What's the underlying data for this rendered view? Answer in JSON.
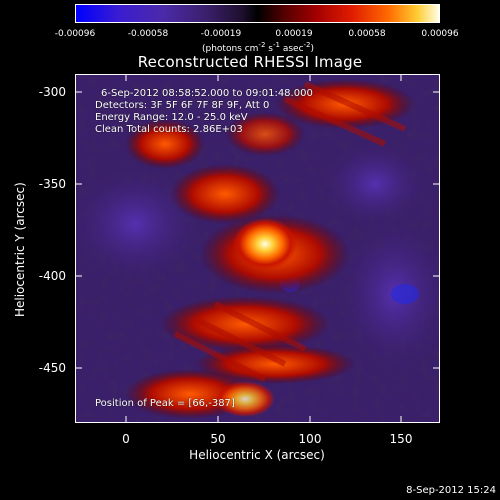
{
  "colorbar": {
    "ticks": [
      "-0.00096",
      "-0.00058",
      "-0.00019",
      "0.00019",
      "0.00058",
      "0.00096"
    ],
    "unit_main": "(photons cm",
    "unit_exp1": "-2",
    "unit_mid": " s",
    "unit_exp2": "-1",
    "unit_mid2": " asec",
    "unit_exp3": "-2",
    "unit_end": ")"
  },
  "plot": {
    "title": "Reconstructed RHESSI Image",
    "xlabel": "Heliocentric X (arcsec)",
    "ylabel": "Heliocentric Y (arcsec)",
    "xticks": [
      "0",
      "50",
      "100",
      "150"
    ],
    "yticks": [
      "-300",
      "-350",
      "-400",
      "-450"
    ]
  },
  "info": {
    "time_range": "6-Sep-2012 08:58:52.000 to 09:01:48.000",
    "detectors": "Detectors: 3F 5F 6F 7F 8F 9F, Att 0",
    "energy": "Energy Range: 12.0 - 25.0 keV",
    "method": "Clean     Total counts: 2.86E+03",
    "peak": "Position of Peak = [66,-387]"
  },
  "footer": {
    "timestamp": "8-Sep-2012 15:24"
  },
  "colors": {
    "background": "#000000",
    "hot": "#ffffe5",
    "cold": "#0000ff"
  }
}
